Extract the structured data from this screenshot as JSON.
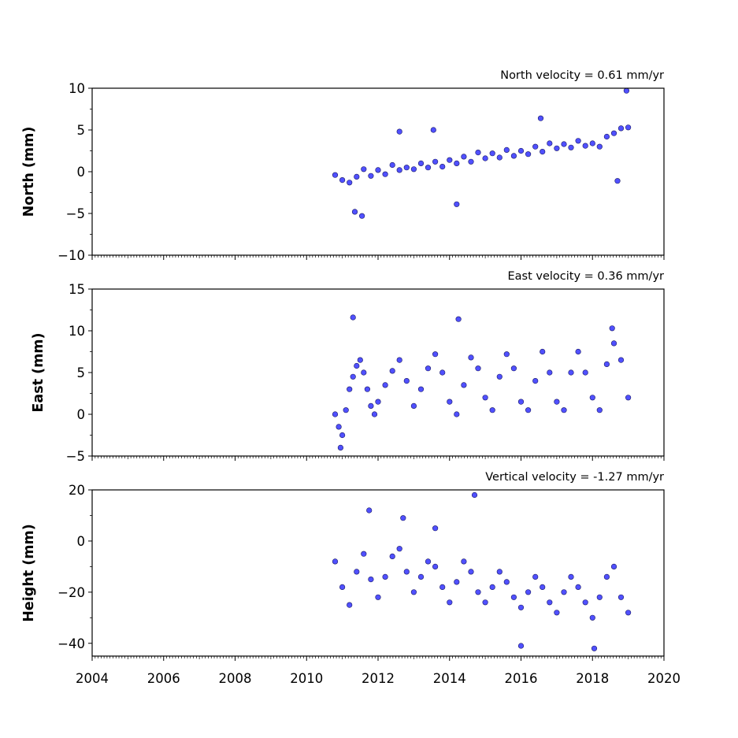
{
  "chart_data": [
    {
      "type": "scatter",
      "title": "North velocity = 0.61 mm/yr",
      "ylabel": "North (mm)",
      "xlim": [
        2004,
        2020
      ],
      "ylim": [
        -10,
        10
      ],
      "yticks": [
        10,
        5,
        0,
        -5,
        -10
      ],
      "ytick_labels": [
        "10",
        "5",
        "0",
        "−5",
        "−10"
      ],
      "series": [
        {
          "color": "#5050ff",
          "x": [
            2010.8,
            2011.0,
            2011.2,
            2011.4,
            2011.6,
            2011.8,
            2012.0,
            2012.2,
            2012.4,
            2012.6,
            2012.8,
            2013.0,
            2013.2,
            2013.4,
            2013.6,
            2013.8,
            2014.0,
            2014.2,
            2014.4,
            2014.6,
            2014.8,
            2015.0,
            2015.2,
            2015.4,
            2015.6,
            2015.8,
            2016.0,
            2016.2,
            2016.4,
            2016.6,
            2016.8,
            2017.0,
            2017.2,
            2017.4,
            2017.6,
            2017.8,
            2018.0,
            2018.2,
            2018.4,
            2018.6,
            2018.8,
            2019.0,
            2011.35,
            2011.55,
            2012.6,
            2013.55,
            2014.2,
            2016.55,
            2018.95,
            2018.7
          ],
          "y": [
            -0.4,
            -1.0,
            -1.3,
            -0.6,
            0.3,
            -0.5,
            0.2,
            -0.3,
            0.8,
            0.2,
            0.5,
            0.3,
            1.0,
            0.5,
            1.2,
            0.6,
            1.4,
            1.0,
            1.8,
            1.2,
            2.3,
            1.6,
            2.2,
            1.7,
            2.6,
            1.9,
            2.5,
            2.1,
            3.0,
            2.4,
            3.4,
            2.8,
            3.3,
            2.9,
            3.7,
            3.1,
            3.4,
            3.0,
            4.2,
            4.6,
            5.2,
            5.3,
            -4.8,
            -5.3,
            4.8,
            5.0,
            -3.9,
            6.4,
            9.7,
            -1.1
          ]
        }
      ]
    },
    {
      "type": "scatter",
      "title": "East velocity = 0.36 mm/yr",
      "ylabel": "East (mm)",
      "xlim": [
        2004,
        2020
      ],
      "ylim": [
        -5,
        15
      ],
      "yticks": [
        15,
        10,
        5,
        0,
        -5
      ],
      "ytick_labels": [
        "15",
        "10",
        "5",
        "0",
        "−5"
      ],
      "series": [
        {
          "color": "#5050ff",
          "x": [
            2010.8,
            2010.9,
            2011.0,
            2011.1,
            2011.2,
            2011.3,
            2011.4,
            2011.5,
            2011.6,
            2011.7,
            2011.8,
            2011.9,
            2012.0,
            2012.2,
            2012.4,
            2012.6,
            2012.8,
            2013.0,
            2013.2,
            2013.4,
            2013.6,
            2013.8,
            2014.0,
            2014.2,
            2014.4,
            2014.6,
            2014.8,
            2015.0,
            2015.2,
            2015.4,
            2015.6,
            2015.8,
            2016.0,
            2016.2,
            2016.4,
            2016.6,
            2016.8,
            2017.0,
            2017.2,
            2017.4,
            2017.6,
            2017.8,
            2018.0,
            2018.2,
            2018.4,
            2018.6,
            2018.8,
            2019.0,
            2011.3,
            2014.25,
            2010.95,
            2018.55
          ],
          "y": [
            0.0,
            -1.5,
            -2.5,
            0.5,
            3.0,
            4.5,
            5.8,
            6.5,
            5.0,
            3.0,
            1.0,
            0.0,
            1.5,
            3.5,
            5.2,
            6.5,
            4.0,
            1.0,
            3.0,
            5.5,
            7.2,
            5.0,
            1.5,
            0.0,
            3.5,
            6.8,
            5.5,
            2.0,
            0.5,
            4.5,
            7.2,
            5.5,
            1.5,
            0.5,
            4.0,
            7.5,
            5.0,
            1.5,
            0.5,
            5.0,
            7.5,
            5.0,
            2.0,
            0.5,
            6.0,
            8.5,
            6.5,
            2.0,
            11.6,
            11.4,
            -4.0,
            10.3
          ]
        }
      ]
    },
    {
      "type": "scatter",
      "title": "Vertical velocity = -1.27 mm/yr",
      "ylabel": "Height (mm)",
      "xlabel": "",
      "xlim": [
        2004,
        2020
      ],
      "ylim": [
        -45,
        20
      ],
      "yticks": [
        20,
        0,
        -20,
        -40
      ],
      "ytick_labels": [
        "20",
        "0",
        "−20",
        "−40"
      ],
      "series": [
        {
          "color": "#5050ff",
          "x": [
            2010.8,
            2011.0,
            2011.2,
            2011.4,
            2011.6,
            2011.8,
            2012.0,
            2012.2,
            2012.4,
            2012.6,
            2012.8,
            2013.0,
            2013.2,
            2013.4,
            2013.6,
            2013.8,
            2014.0,
            2014.2,
            2014.4,
            2014.6,
            2014.8,
            2015.0,
            2015.2,
            2015.4,
            2015.6,
            2015.8,
            2016.0,
            2016.2,
            2016.4,
            2016.6,
            2016.8,
            2017.0,
            2017.2,
            2017.4,
            2017.6,
            2017.8,
            2018.0,
            2018.2,
            2018.4,
            2018.6,
            2018.8,
            2019.0,
            2011.75,
            2014.7,
            2012.7,
            2016.0,
            2018.05,
            2013.6
          ],
          "y": [
            -8,
            -18,
            -25,
            -12,
            -5,
            -15,
            -22,
            -14,
            -6,
            -3,
            -12,
            -20,
            -14,
            -8,
            -10,
            -18,
            -24,
            -16,
            -8,
            -12,
            -20,
            -24,
            -18,
            -12,
            -16,
            -22,
            -26,
            -20,
            -14,
            -18,
            -24,
            -28,
            -20,
            -14,
            -18,
            -24,
            -30,
            -22,
            -14,
            -10,
            -22,
            -28,
            12,
            18,
            9,
            -41,
            -42,
            5
          ]
        }
      ]
    }
  ],
  "x_ticks": [
    "2004",
    "2006",
    "2008",
    "2010",
    "2012",
    "2014",
    "2016",
    "2018",
    "2020"
  ]
}
